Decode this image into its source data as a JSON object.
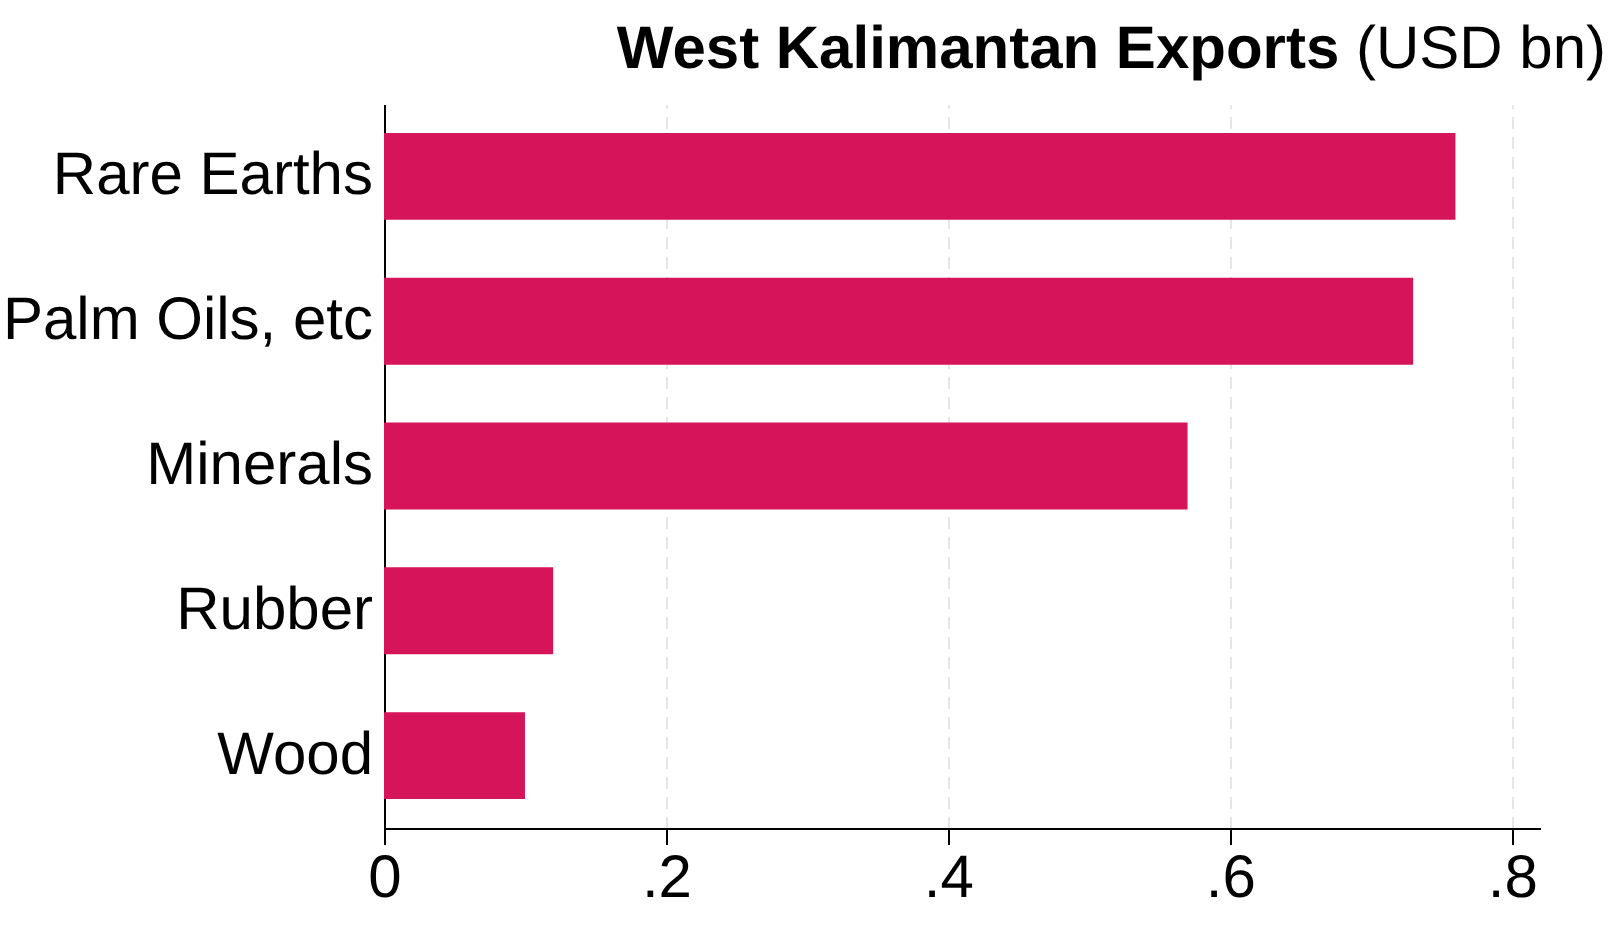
{
  "chart_data": {
    "type": "bar",
    "orientation": "horizontal",
    "title": "West Kalimantan Exports",
    "subtitle": "(USD bn)",
    "categories": [
      "Rare Earths",
      "Palm Oils, etc",
      "Minerals",
      "Rubber",
      "Wood"
    ],
    "values": [
      0.76,
      0.73,
      0.57,
      0.12,
      0.1
    ],
    "color": "#d5145a",
    "xlim": [
      0,
      0.82
    ],
    "xticks": [
      0,
      {
        "value": 0.2,
        "label": ".2"
      },
      {
        "value": 0.4,
        "label": ".4"
      },
      {
        "value": 0.6,
        "label": ".6"
      },
      {
        "value": 0.8,
        "label": ".8"
      }
    ],
    "grid": "x"
  }
}
